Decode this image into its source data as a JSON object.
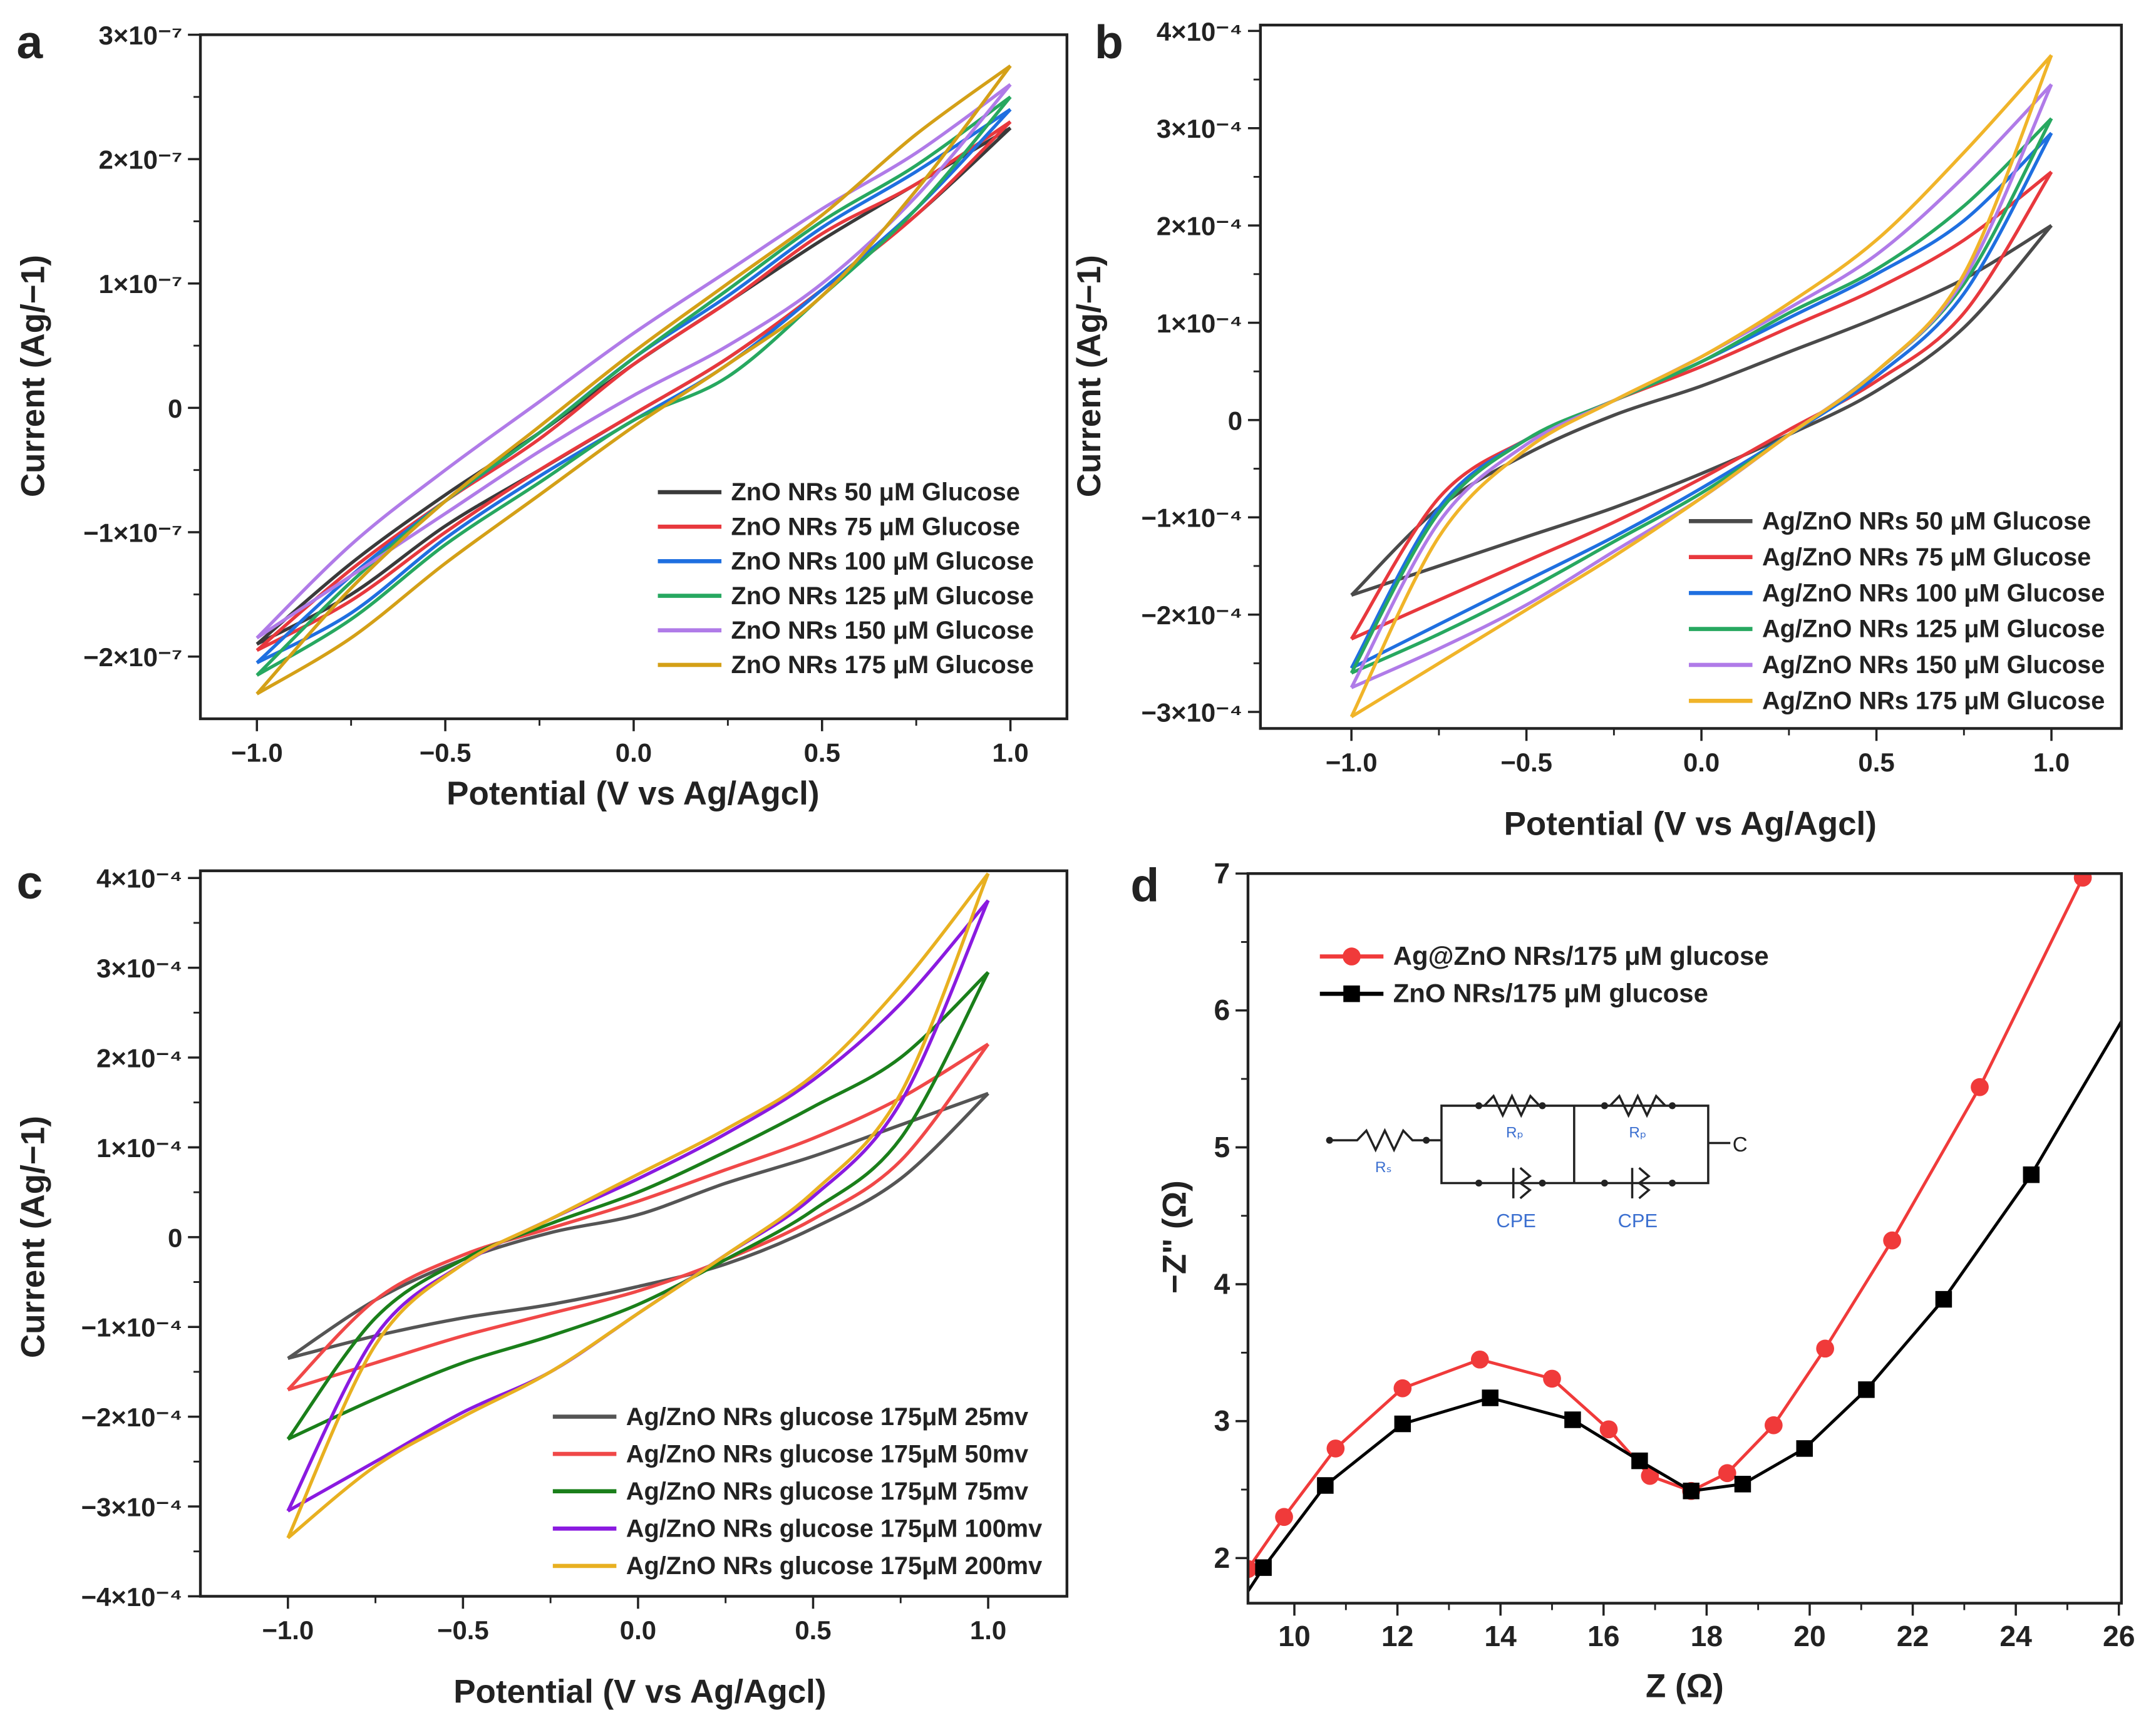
{
  "chart_data": [
    {
      "panel": "a",
      "type": "line",
      "xlabel": "Potential (V vs Ag/Agcl)",
      "ylabel": "Current (Ag/−1)",
      "xlim": [
        -1.15,
        1.15
      ],
      "ylim": [
        -2.5e-07,
        3e-07
      ],
      "xticks": [
        {
          "v": -1.0,
          "label": "−1.0"
        },
        {
          "v": -0.5,
          "label": "−0.5"
        },
        {
          "v": 0.0,
          "label": "0.0"
        },
        {
          "v": 0.5,
          "label": "0.5"
        },
        {
          "v": 1.0,
          "label": "1.0"
        }
      ],
      "yticks": [
        {
          "v": 3e-07,
          "label": "3×10⁻⁷"
        },
        {
          "v": 2e-07,
          "label": "2×10⁻⁷"
        },
        {
          "v": 1e-07,
          "label": "1×10⁻⁷"
        },
        {
          "v": 0,
          "label": "0"
        },
        {
          "v": -1e-07,
          "label": "−1×10⁻⁷"
        },
        {
          "v": -2e-07,
          "label": "−2×10⁻⁷"
        }
      ],
      "legend_position": "bottom-right",
      "x": [
        -1,
        -0.75,
        -0.5,
        -0.25,
        0,
        0.25,
        0.5,
        0.75,
        1
      ],
      "series": [
        {
          "name": "ZnO NRs 50 μM Glucose",
          "color": "#3a3a3a",
          "upper": [
            -1.9e-07,
            -1.25e-07,
            -7e-08,
            -2e-08,
            3.5e-08,
            8.5e-08,
            1.35e-07,
            1.8e-07,
            2.25e-07
          ],
          "lower": [
            -1.9e-07,
            -1.5e-07,
            -9.5e-08,
            -5e-08,
            -5e-09,
            4e-08,
            9.5e-08,
            1.55e-07,
            2.25e-07
          ]
        },
        {
          "name": "ZnO NRs 75 μM Glucose",
          "color": "#e8383d",
          "upper": [
            -1.95e-07,
            -1.3e-07,
            -7.5e-08,
            -2.5e-08,
            3.5e-08,
            8.5e-08,
            1.4e-07,
            1.8e-07,
            2.3e-07
          ],
          "lower": [
            -1.95e-07,
            -1.55e-07,
            -1e-07,
            -5e-08,
            -5e-09,
            4e-08,
            9.5e-08,
            1.55e-07,
            2.3e-07
          ]
        },
        {
          "name": "ZnO NRs 100 μM Glucose",
          "color": "#1f6fe0",
          "upper": [
            -2.05e-07,
            -1.35e-07,
            -7.5e-08,
            -2e-08,
            4e-08,
            9e-08,
            1.45e-07,
            1.9e-07,
            2.4e-07
          ],
          "lower": [
            -2.05e-07,
            -1.65e-07,
            -1.05e-07,
            -5.5e-08,
            -1e-08,
            3.5e-08,
            9.5e-08,
            1.6e-07,
            2.4e-07
          ]
        },
        {
          "name": "ZnO NRs 125 μM Glucose",
          "color": "#27a860",
          "upper": [
            -2.15e-07,
            -1.4e-07,
            -7.5e-08,
            -2e-08,
            4e-08,
            9.5e-08,
            1.5e-07,
            1.95e-07,
            2.5e-07
          ],
          "lower": [
            -2.15e-07,
            -1.7e-07,
            -1.1e-07,
            -6e-08,
            -1e-08,
            2.5e-08,
            9e-08,
            1.6e-07,
            2.5e-07
          ]
        },
        {
          "name": "ZnO NRs 150 μM Glucose",
          "color": "#b07be8",
          "upper": [
            -1.85e-07,
            -1.1e-07,
            -5e-08,
            5e-09,
            6e-08,
            1.1e-07,
            1.6e-07,
            2.05e-07,
            2.6e-07
          ],
          "lower": [
            -1.85e-07,
            -1.35e-07,
            -8.5e-08,
            -3.5e-08,
            1e-08,
            5e-08,
            1e-07,
            1.7e-07,
            2.6e-07
          ]
        },
        {
          "name": "ZnO NRs 175 μM Glucose",
          "color": "#d4a017",
          "upper": [
            -2.3e-07,
            -1.45e-07,
            -7.5e-08,
            -1.5e-08,
            4.5e-08,
            1e-07,
            1.55e-07,
            2.2e-07,
            2.75e-07
          ],
          "lower": [
            -2.3e-07,
            -1.85e-07,
            -1.25e-07,
            -7e-08,
            -1.5e-08,
            3.5e-08,
            9e-08,
            1.75e-07,
            2.75e-07
          ]
        }
      ]
    },
    {
      "panel": "b",
      "type": "line",
      "xlabel": "Potential (V vs Ag/Agcl)",
      "ylabel": "Current (Ag/−1)",
      "xlim": [
        -1.26,
        1.2
      ],
      "ylim": [
        -0.000317,
        0.000406
      ],
      "xticks": [
        {
          "v": -1.0,
          "label": "−1.0"
        },
        {
          "v": -0.5,
          "label": "−0.5"
        },
        {
          "v": 0.0,
          "label": "0.0"
        },
        {
          "v": 0.5,
          "label": "0.5"
        },
        {
          "v": 1.0,
          "label": "1.0"
        }
      ],
      "yticks": [
        {
          "v": 0.0004,
          "label": "4×10⁻⁴"
        },
        {
          "v": 0.0003,
          "label": "3×10⁻⁴"
        },
        {
          "v": 0.0002,
          "label": "2×10⁻⁴"
        },
        {
          "v": 0.0001,
          "label": "1×10⁻⁴"
        },
        {
          "v": 0,
          "label": "0"
        },
        {
          "v": -0.0001,
          "label": "−1×10⁻⁴"
        },
        {
          "v": -0.0002,
          "label": "−2×10⁻⁴"
        },
        {
          "v": -0.0003,
          "label": "−3×10⁻⁴"
        }
      ],
      "legend_position": "bottom-right",
      "x": [
        -1,
        -0.75,
        -0.5,
        -0.25,
        0,
        0.25,
        0.5,
        0.75,
        1
      ],
      "series": [
        {
          "name": "Ag/ZnO NRs 50 μM Glucose",
          "color": "#4a4a4a",
          "upper": [
            -0.00018,
            -9e-05,
            -3.5e-05,
            5e-06,
            3.5e-05,
            7e-05,
            0.000105,
            0.000145,
            0.0002
          ],
          "lower": [
            -0.00018,
            -0.00015,
            -0.00012,
            -9e-05,
            -5.5e-05,
            -1.5e-05,
            3e-05,
            9.5e-05,
            0.0002
          ]
        },
        {
          "name": "Ag/ZnO NRs 75 μM Glucose",
          "color": "#e8383d",
          "upper": [
            -0.000225,
            -8e-05,
            -2e-05,
            2e-05,
            5.5e-05,
            9.5e-05,
            0.000135,
            0.000185,
            0.000255
          ],
          "lower": [
            -0.000225,
            -0.000185,
            -0.000145,
            -0.000105,
            -6e-05,
            -1e-05,
            4e-05,
            0.00011,
            0.000255
          ]
        },
        {
          "name": "Ag/ZnO NRs 100 μM Glucose",
          "color": "#1f6fe0",
          "upper": [
            -0.000255,
            -9e-05,
            -2e-05,
            2e-05,
            6e-05,
            0.000105,
            0.00015,
            0.000205,
            0.000295
          ],
          "lower": [
            -0.000255,
            -0.00021,
            -0.000165,
            -0.00012,
            -7e-05,
            -1.5e-05,
            4.5e-05,
            0.00013,
            0.000295
          ]
        },
        {
          "name": "Ag/ZnO NRs 125 μM Glucose",
          "color": "#27a860",
          "upper": [
            -0.00026,
            -9.5e-05,
            -2e-05,
            2e-05,
            6e-05,
            0.00011,
            0.000155,
            0.00022,
            0.00031
          ],
          "lower": [
            -0.00026,
            -0.00022,
            -0.000175,
            -0.000125,
            -7.5e-05,
            -1.5e-05,
            5e-05,
            0.00014,
            0.00031
          ]
        },
        {
          "name": "Ag/ZnO NRs 150 μM Glucose",
          "color": "#b07be8",
          "upper": [
            -0.000275,
            -0.000105,
            -2.5e-05,
            2e-05,
            6.5e-05,
            0.000115,
            0.00017,
            0.00025,
            0.000345
          ],
          "lower": [
            -0.000275,
            -0.000235,
            -0.00019,
            -0.000135,
            -8e-05,
            -1.5e-05,
            5e-05,
            0.000145,
            0.000345
          ]
        },
        {
          "name": "Ag/ZnO NRs 175 μM Glucose",
          "color": "#f0b429",
          "upper": [
            -0.000305,
            -0.00012,
            -3e-05,
            2e-05,
            6.5e-05,
            0.00012,
            0.000185,
            0.000275,
            0.000375
          ],
          "lower": [
            -0.000305,
            -0.00025,
            -0.000195,
            -0.00014,
            -8e-05,
            -1.5e-05,
            5e-05,
            0.00015,
            0.000375
          ]
        }
      ]
    },
    {
      "panel": "c",
      "type": "line",
      "xlabel": "Potential (V vs Ag/Agcl)",
      "ylabel": "Current (Ag/−1)",
      "xlim": [
        -1.25,
        1.225
      ],
      "ylim": [
        -0.0004,
        0.000408
      ],
      "xticks": [
        {
          "v": -1.0,
          "label": "−1.0"
        },
        {
          "v": -0.5,
          "label": "−0.5"
        },
        {
          "v": 0.0,
          "label": "0.0"
        },
        {
          "v": 0.5,
          "label": "0.5"
        },
        {
          "v": 1.0,
          "label": "1.0"
        }
      ],
      "yticks": [
        {
          "v": 0.0004,
          "label": "4×10⁻⁴"
        },
        {
          "v": 0.0003,
          "label": "3×10⁻⁴"
        },
        {
          "v": 0.0002,
          "label": "2×10⁻⁴"
        },
        {
          "v": 0.0001,
          "label": "1×10⁻⁴"
        },
        {
          "v": 0,
          "label": "0"
        },
        {
          "v": -0.0001,
          "label": "−1×10⁻⁴"
        },
        {
          "v": -0.0002,
          "label": "−2×10⁻⁴"
        },
        {
          "v": -0.0003,
          "label": "−3×10⁻⁴"
        },
        {
          "v": -0.0004,
          "label": "−4×10⁻⁴"
        }
      ],
      "legend_position": "bottom-right",
      "x": [
        -1,
        -0.75,
        -0.5,
        -0.25,
        0,
        0.25,
        0.5,
        0.75,
        1
      ],
      "series": [
        {
          "name": "Ag/ZnO NRs glucose 175μM 25mv",
          "color": "#555555",
          "upper": [
            -0.000135,
            -7e-05,
            -2.5e-05,
            5e-06,
            2.5e-05,
            6e-05,
            9e-05,
            0.000125,
            0.00016
          ],
          "lower": [
            -0.000135,
            -0.00011,
            -9e-05,
            -7.5e-05,
            -5.5e-05,
            -3e-05,
            1e-05,
            6.5e-05,
            0.00016
          ]
        },
        {
          "name": "Ag/ZnO NRs glucose 175μM 50mv",
          "color": "#f04848",
          "upper": [
            -0.00017,
            -7e-05,
            -2e-05,
            1e-05,
            4e-05,
            7.5e-05,
            0.00011,
            0.000155,
            0.000215
          ],
          "lower": [
            -0.00017,
            -0.00014,
            -0.00011,
            -8.5e-05,
            -6e-05,
            -2.5e-05,
            2e-05,
            8.5e-05,
            0.000215
          ]
        },
        {
          "name": "Ag/ZnO NRs glucose 175μM 75mv",
          "color": "#1a7f1a",
          "upper": [
            -0.000225,
            -9e-05,
            -2.5e-05,
            1.5e-05,
            5e-05,
            9.5e-05,
            0.000145,
            0.0002,
            0.000295
          ],
          "lower": [
            -0.000225,
            -0.00018,
            -0.00014,
            -0.00011,
            -7.5e-05,
            -2.5e-05,
            3e-05,
            0.00011,
            0.000295
          ]
        },
        {
          "name": "Ag/ZnO NRs glucose 175μM 100mv",
          "color": "#8a1ae0",
          "upper": [
            -0.000305,
            -0.00011,
            -3e-05,
            2e-05,
            6.5e-05,
            0.000115,
            0.000175,
            0.00026,
            0.000375
          ],
          "lower": [
            -0.000305,
            -0.00025,
            -0.000195,
            -0.00015,
            -8.5e-05,
            -2e-05,
            4.5e-05,
            0.00015,
            0.000375
          ]
        },
        {
          "name": "Ag/ZnO NRs glucose 175μM 200mv",
          "color": "#e8b020",
          "upper": [
            -0.000335,
            -0.00012,
            -3e-05,
            2e-05,
            7e-05,
            0.00012,
            0.00018,
            0.00028,
            0.000405
          ],
          "lower": [
            -0.000335,
            -0.000255,
            -0.0002,
            -0.00015,
            -8.5e-05,
            -2e-05,
            5e-05,
            0.00016,
            0.000405
          ]
        }
      ]
    },
    {
      "panel": "d",
      "type": "line",
      "xlabel": "Z (Ω)",
      "ylabel": "−Z\" (Ω)",
      "xlim": [
        9.1,
        26.05
      ],
      "ylim": [
        1.67,
        7.0
      ],
      "xticks": [
        {
          "v": 10,
          "label": "10"
        },
        {
          "v": 12,
          "label": "12"
        },
        {
          "v": 14,
          "label": "14"
        },
        {
          "v": 16,
          "label": "16"
        },
        {
          "v": 18,
          "label": "18"
        },
        {
          "v": 20,
          "label": "20"
        },
        {
          "v": 22,
          "label": "22"
        },
        {
          "v": 24,
          "label": "24"
        },
        {
          "v": 26,
          "label": "26"
        }
      ],
      "yticks": [
        {
          "v": 2,
          "label": "2"
        },
        {
          "v": 3,
          "label": "3"
        },
        {
          "v": 4,
          "label": "4"
        },
        {
          "v": 5,
          "label": "5"
        },
        {
          "v": 6,
          "label": "6"
        },
        {
          "v": 7,
          "label": "7"
        }
      ],
      "legend_position": "top-left",
      "series": [
        {
          "name": "Ag@ZnO NRs/175 μM glucose",
          "color": "#f03a3a",
          "marker": "circle",
          "points": [
            [
              9.1,
              1.92
            ],
            [
              9.8,
              2.3
            ],
            [
              10.8,
              2.8
            ],
            [
              12.1,
              3.24
            ],
            [
              13.6,
              3.45
            ],
            [
              15.0,
              3.31
            ],
            [
              16.1,
              2.94
            ],
            [
              16.9,
              2.6
            ],
            [
              17.7,
              2.49
            ],
            [
              18.4,
              2.62
            ],
            [
              19.3,
              2.97
            ],
            [
              20.3,
              3.53
            ],
            [
              21.6,
              4.32
            ],
            [
              23.3,
              5.44
            ],
            [
              25.3,
              6.97
            ]
          ]
        },
        {
          "name": "ZnO NRs/175 μM glucose",
          "color": "#000000",
          "marker": "square",
          "points": [
            [
              9.4,
              1.93
            ],
            [
              10.6,
              2.53
            ],
            [
              12.1,
              2.98
            ],
            [
              13.8,
              3.17
            ],
            [
              15.4,
              3.01
            ],
            [
              16.7,
              2.71
            ],
            [
              17.7,
              2.49
            ],
            [
              18.7,
              2.54
            ],
            [
              19.9,
              2.8
            ],
            [
              21.1,
              3.23
            ],
            [
              22.6,
              3.89
            ],
            [
              24.3,
              4.8
            ]
          ],
          "line_extends_to": [
            [
              9.0,
              1.7
            ],
            [
              26.05,
              5.92
            ]
          ]
        }
      ],
      "inset_circuit": {
        "labels": {
          "rs": "Rₛ",
          "rp1": "Rₚ",
          "rp2": "Rₚ",
          "cpe1": "CPE",
          "cpe2": "CPE",
          "c": "C"
        },
        "label_color": "#3b6fd0"
      }
    }
  ]
}
